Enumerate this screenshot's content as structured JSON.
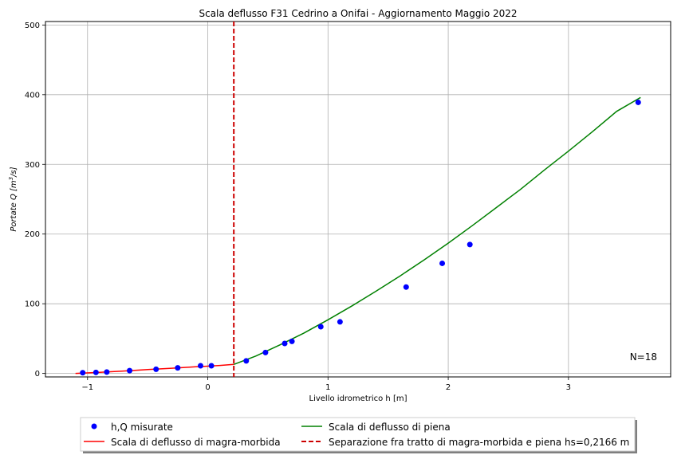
{
  "chart_data": {
    "type": "scatter",
    "title": "Scala deflusso F31 Cedrino a Onifai - Aggiornamento Maggio 2022",
    "xlabel": "Livello idrometrico h [m]",
    "ylabel_main": "Portate   Q   [m",
    "ylabel_sup": "3",
    "ylabel_end": "/s]",
    "xlim": [
      -1.35,
      3.85
    ],
    "ylim": [
      -5,
      505
    ],
    "x_ticks": [
      -1,
      0,
      1,
      2,
      3
    ],
    "x_tick_labels": [
      "−1",
      "0",
      "1",
      "2",
      "3"
    ],
    "y_ticks": [
      0,
      100,
      200,
      300,
      400,
      500
    ],
    "y_tick_labels": [
      "0",
      "100",
      "200",
      "300",
      "400",
      "500"
    ],
    "grid": true,
    "annotation": "N=18",
    "legend_placement": "below",
    "series": [
      {
        "name": "h,Q misurate",
        "kind": "points",
        "color": "#0000ff",
        "x": [
          -1.04,
          -0.93,
          -0.84,
          -0.65,
          -0.43,
          -0.25,
          -0.06,
          0.03,
          0.32,
          0.48,
          0.64,
          0.7,
          0.94,
          1.1,
          1.65,
          1.95,
          2.18,
          3.58
        ],
        "y": [
          1,
          1.5,
          2,
          4,
          6,
          8,
          11,
          11,
          18,
          30,
          43,
          46,
          67,
          74,
          124,
          158,
          185,
          389
        ]
      },
      {
        "name": "Scala di deflusso di magra-morbida",
        "kind": "line",
        "color": "#ff0000",
        "x": [
          -1.1,
          -0.9,
          -0.7,
          -0.5,
          -0.3,
          -0.1,
          0.1,
          0.2166
        ],
        "y": [
          0,
          1.5,
          3.5,
          5.5,
          7.5,
          9.5,
          11.5,
          13
        ]
      },
      {
        "name": "Scala di deflusso di piena",
        "kind": "line",
        "color": "#008000",
        "x": [
          0.2166,
          0.4,
          0.6,
          0.8,
          1.0,
          1.2,
          1.4,
          1.6,
          1.8,
          2.0,
          2.2,
          2.4,
          2.6,
          2.8,
          3.0,
          3.2,
          3.4,
          3.6
        ],
        "y": [
          13,
          25,
          41,
          58,
          77,
          97,
          118,
          140,
          163,
          187,
          212,
          238,
          264,
          292,
          319,
          347,
          376,
          396
        ]
      },
      {
        "name": "Separazione fra tratto di magra-morbida e piena hs=0,2166 m",
        "kind": "vline",
        "color": "#cc0000",
        "x": 0.2166
      }
    ]
  }
}
